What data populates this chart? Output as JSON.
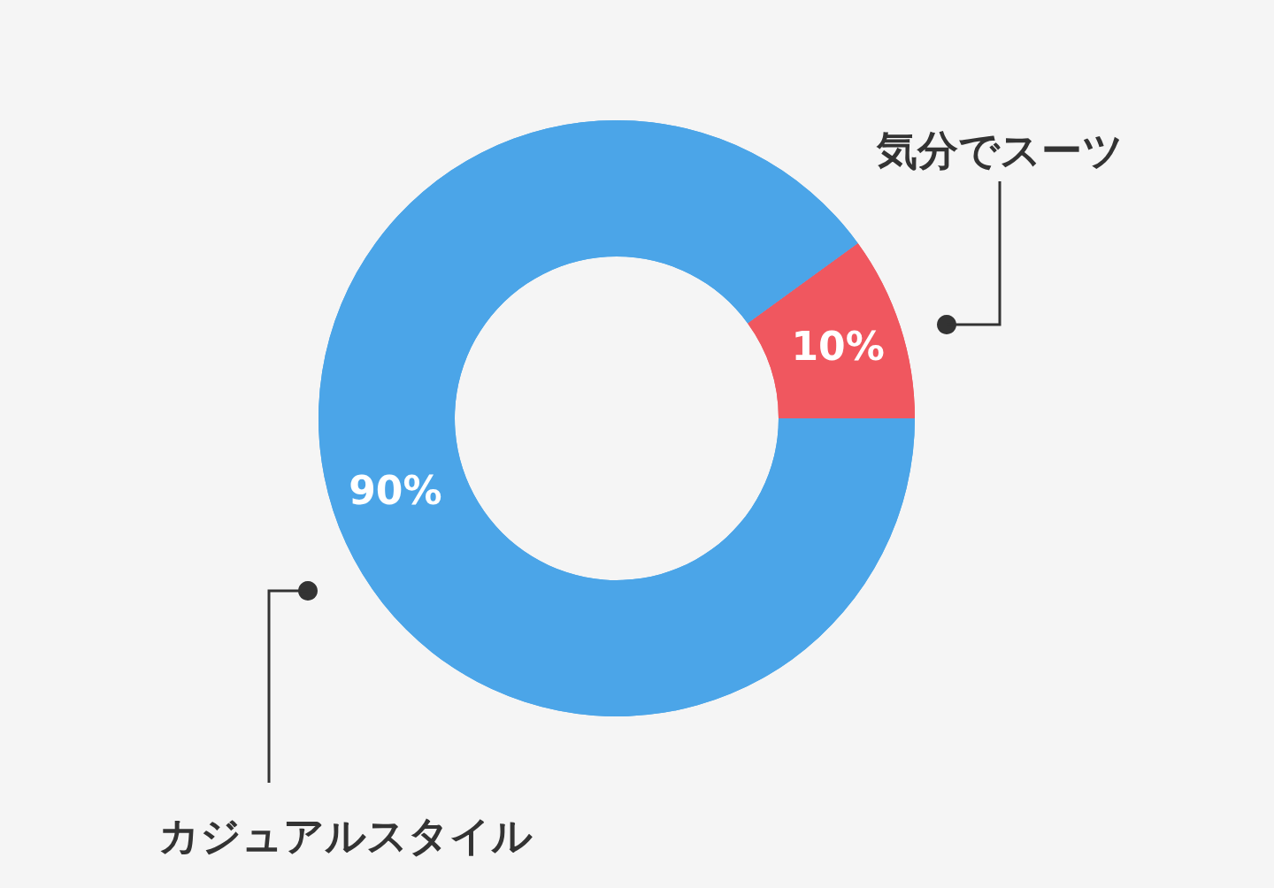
{
  "chart_data": {
    "type": "donut",
    "categories": [
      "気分でスーツ",
      "カジュアルスタイル"
    ],
    "values": [
      10,
      90
    ],
    "colors": [
      "#f0575f",
      "#4ba5e8"
    ],
    "value_labels": [
      "10%",
      "90%"
    ]
  }
}
